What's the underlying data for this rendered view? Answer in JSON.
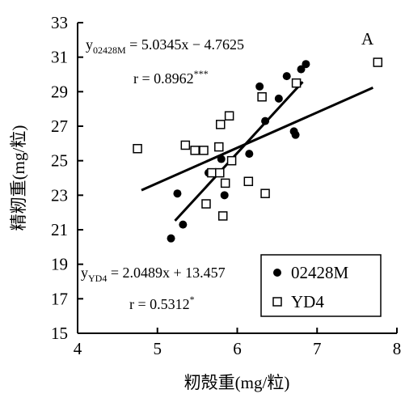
{
  "chart_data": {
    "type": "scatter",
    "x_label": "籾殻重(mg/粒)",
    "y_label": "精籾重(mg/粒)",
    "xlim": [
      4,
      8
    ],
    "xticks": [
      4,
      5,
      6,
      7,
      8
    ],
    "ylim": [
      15,
      33
    ],
    "yticks": [
      15,
      17,
      19,
      21,
      23,
      25,
      27,
      29,
      31,
      33
    ],
    "series": [
      {
        "name": "02428M",
        "marker": "circle",
        "color": "#000000",
        "x": [
          5.17,
          5.32,
          5.25,
          5.8,
          5.84,
          5.7,
          5.64,
          6.15,
          6.28,
          6.35,
          6.52,
          6.62,
          6.71,
          6.73,
          6.8,
          6.86
        ],
        "values": [
          20.5,
          21.3,
          23.1,
          25.1,
          23.0,
          24.3,
          24.3,
          25.4,
          29.3,
          27.3,
          28.6,
          29.9,
          26.7,
          26.5,
          30.3,
          30.6
        ]
      },
      {
        "name": "YD4",
        "marker": "square",
        "color": "#000000",
        "x": [
          4.75,
          5.35,
          5.47,
          5.58,
          5.61,
          5.68,
          5.78,
          5.77,
          5.79,
          5.9,
          5.85,
          5.82,
          5.93,
          6.14,
          6.31,
          6.35,
          6.74,
          7.76
        ],
        "values": [
          25.7,
          25.9,
          25.6,
          25.6,
          22.5,
          24.3,
          24.3,
          25.8,
          27.1,
          27.6,
          23.7,
          21.8,
          25.0,
          23.8,
          28.7,
          23.1,
          29.5,
          30.7
        ]
      }
    ],
    "fit_lines": [
      {
        "x": [
          5.22,
          6.82
        ],
        "values": [
          21.52,
          29.57
        ]
      },
      {
        "x": [
          4.8,
          7.7
        ],
        "values": [
          23.29,
          29.23
        ]
      }
    ],
    "annotations": {
      "eq1": {
        "y": "y",
        "sub": "02428M",
        "rest": " = 5.0345x − 4.7625"
      },
      "r1": {
        "text": "r = 0.8962",
        "sup": "***"
      },
      "eq2": {
        "y": "y",
        "sub": "YD4",
        "rest": " = 2.0489x + 13.457"
      },
      "r2": {
        "text": "r = 0.5312",
        "sup": "*"
      },
      "panel": "A"
    }
  }
}
